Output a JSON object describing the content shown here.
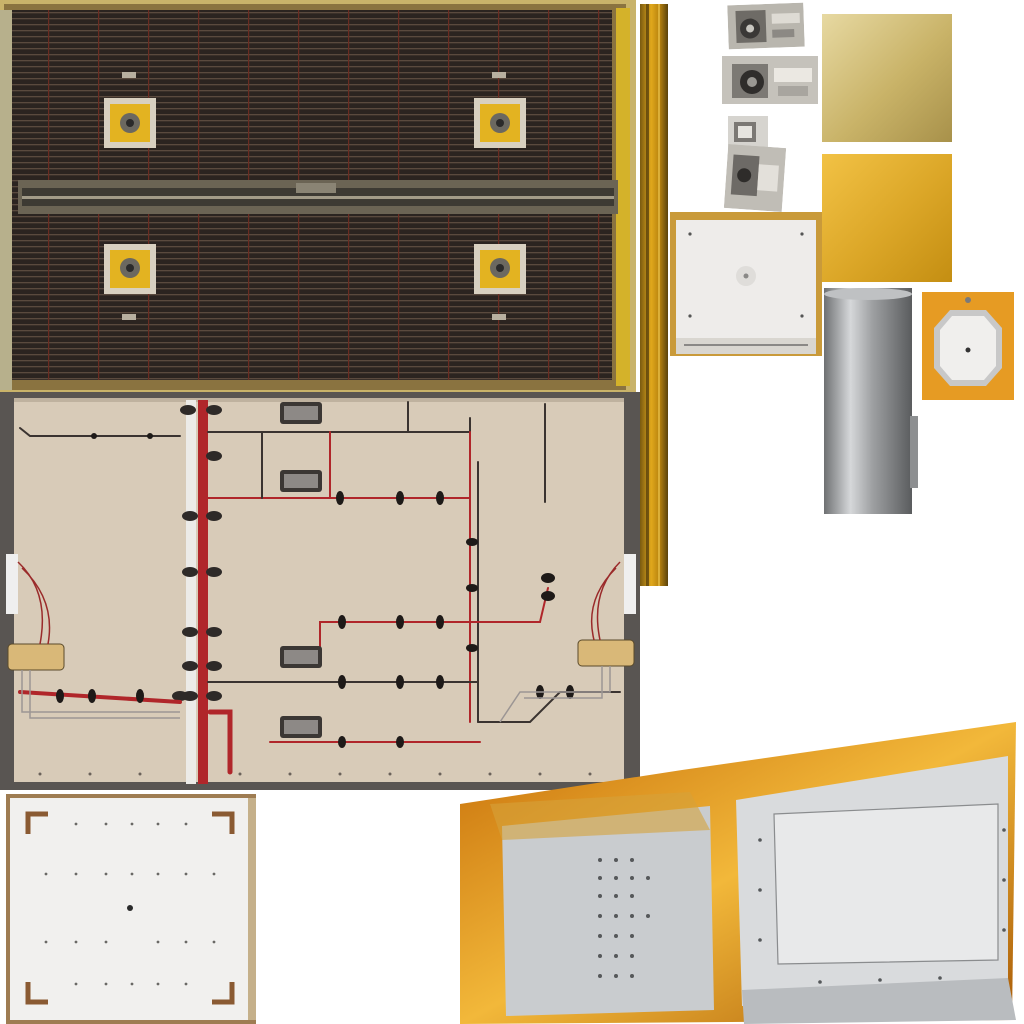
{
  "atlas": {
    "palette": {
      "background": "#ffffff",
      "solar_cell": "#2b2420",
      "solar_grid_red": "#6a2c22",
      "kapton_gold": "#d9a21e",
      "kapton_orange": "#e08a10",
      "panel_beige": "#d8cbb8",
      "harness_red": "#b0262a",
      "harness_dark": "#3a3330",
      "white_panel": "#f1f0ee",
      "mli_silver": "#c9cccf",
      "cylinder_metal": "#9a9c9e"
    },
    "tiles": [
      {
        "id": "solar-panel",
        "icon": "solar-array-icon"
      },
      {
        "id": "gold-foil-strip",
        "icon": "foil-strip-icon"
      },
      {
        "id": "mechanism-photo-1",
        "icon": "mechanism-icon"
      },
      {
        "id": "mechanism-photo-2",
        "icon": "mechanism-icon"
      },
      {
        "id": "mechanism-photo-3",
        "icon": "mechanism-icon"
      },
      {
        "id": "mechanism-photo-4",
        "icon": "mechanism-icon"
      },
      {
        "id": "gold-swatch-light",
        "icon": "gold-swatch-icon"
      },
      {
        "id": "gold-swatch-bright",
        "icon": "gold-swatch-icon"
      },
      {
        "id": "white-radiator-panel",
        "icon": "radiator-icon"
      },
      {
        "id": "metal-cylinder",
        "icon": "cylinder-icon"
      },
      {
        "id": "octagon-sensor",
        "icon": "sensor-icon"
      },
      {
        "id": "harness-panel",
        "icon": "wiring-harness-icon"
      },
      {
        "id": "white-grid-panel",
        "icon": "radiator-icon"
      },
      {
        "id": "mli-box-assembly",
        "icon": "mli-blanket-icon"
      }
    ]
  }
}
